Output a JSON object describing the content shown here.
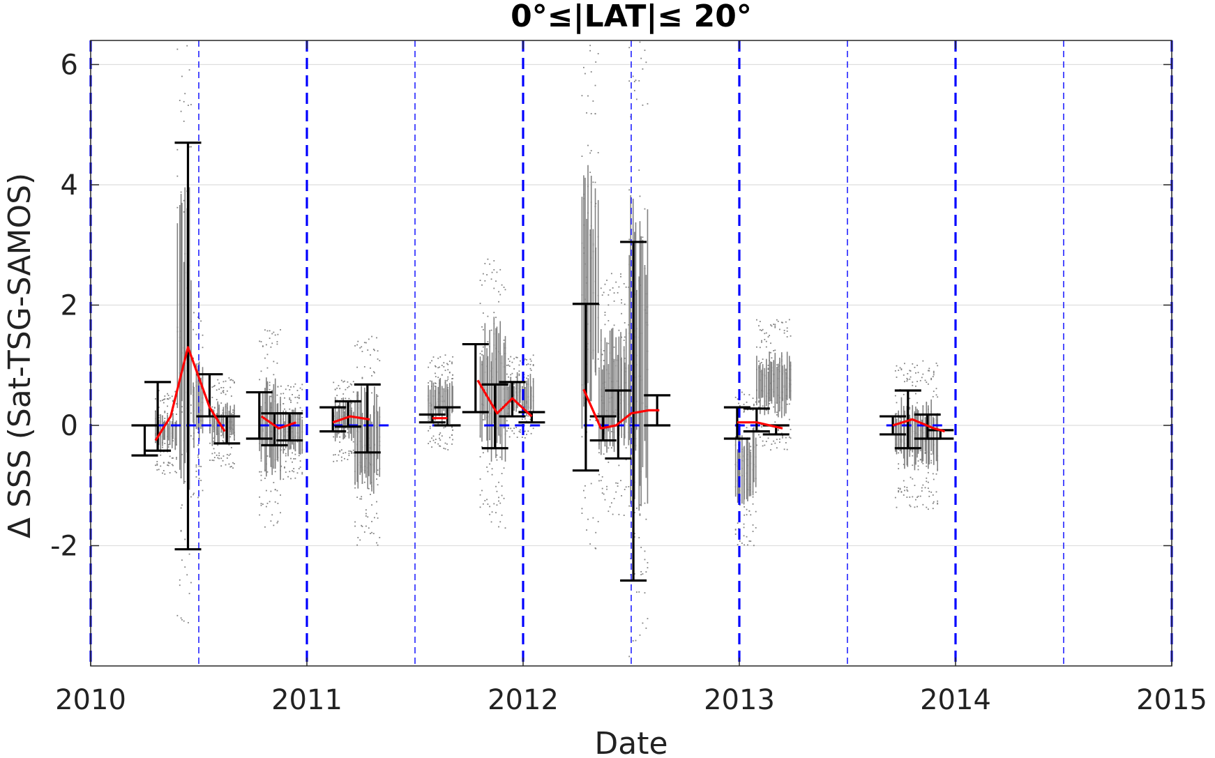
{
  "chart_data": {
    "type": "scatter",
    "title": "0°≤|LAT|≤ 20°",
    "xlabel": "Date",
    "ylabel": "Δ SSS (Sat-TSG-SAMOS)",
    "xlim": [
      2010,
      2015
    ],
    "ylim": [
      -4,
      6.4
    ],
    "x_ticks": [
      2010,
      2011,
      2012,
      2013,
      2014,
      2015
    ],
    "x_tick_labels": [
      "2010",
      "2011",
      "2012",
      "2013",
      "2014",
      "2015"
    ],
    "y_ticks": [
      -2,
      0,
      2,
      4,
      6
    ],
    "y_tick_labels": [
      "-2",
      "0",
      "2",
      "4",
      "6"
    ],
    "grid": "horizontal",
    "colors": {
      "scatter": "#808080",
      "mean_line": "#ff0000",
      "error_bars": "#000000",
      "reference": "#0000ff"
    },
    "year_lines": [
      2010,
      2011,
      2012,
      2013,
      2014,
      2015
    ],
    "half_year_lines": [
      2010.5,
      2011.5,
      2012.5,
      2013.5,
      2014.5
    ],
    "zero_reference_segments": [
      [
        2010.3,
        2010.62
      ],
      [
        2010.78,
        2010.97
      ],
      [
        2011.12,
        2011.38
      ],
      [
        2011.58,
        2011.68
      ],
      [
        2011.82,
        2012.08
      ],
      [
        2012.28,
        2012.62
      ],
      [
        2012.98,
        2013.22
      ],
      [
        2013.68,
        2013.95
      ]
    ],
    "scatter_clusters": [
      {
        "x": [
          2010.3,
          2010.4
        ],
        "ymin": -0.8,
        "ymax": 0.6
      },
      {
        "x": [
          2010.4,
          2010.47
        ],
        "ymin": -3.5,
        "ymax": 6.4
      },
      {
        "x": [
          2010.47,
          2010.52
        ],
        "ymin": -1.2,
        "ymax": 1.9
      },
      {
        "x": [
          2010.55,
          2010.67
        ],
        "ymin": -0.7,
        "ymax": 0.8
      },
      {
        "x": [
          2010.78,
          2010.88
        ],
        "ymin": -1.7,
        "ymax": 1.6
      },
      {
        "x": [
          2010.88,
          2010.98
        ],
        "ymin": -0.9,
        "ymax": 0.7
      },
      {
        "x": [
          2011.12,
          2011.22
        ],
        "ymin": -0.6,
        "ymax": 0.8
      },
      {
        "x": [
          2011.22,
          2011.34
        ],
        "ymin": -2.0,
        "ymax": 1.5
      },
      {
        "x": [
          2011.56,
          2011.68
        ],
        "ymin": -0.4,
        "ymax": 1.2
      },
      {
        "x": [
          2011.8,
          2011.92
        ],
        "ymin": -1.7,
        "ymax": 2.9
      },
      {
        "x": [
          2011.92,
          2012.05
        ],
        "ymin": -0.2,
        "ymax": 1.2
      },
      {
        "x": [
          2012.27,
          2012.35
        ],
        "ymin": -2.1,
        "ymax": 6.4
      },
      {
        "x": [
          2012.35,
          2012.49
        ],
        "ymin": -1.5,
        "ymax": 2.6
      },
      {
        "x": [
          2012.49,
          2012.58
        ],
        "ymin": -4.0,
        "ymax": 6.4
      },
      {
        "x": [
          2012.98,
          2013.08
        ],
        "ymin": -2.0,
        "ymax": 0.6
      },
      {
        "x": [
          2013.08,
          2013.24
        ],
        "ymin": -0.4,
        "ymax": 1.8
      },
      {
        "x": [
          2013.72,
          2013.92
        ],
        "ymin": -1.4,
        "ymax": 1.1
      }
    ],
    "monthly_means": {
      "x": [
        2010.3,
        2010.37,
        2010.45,
        2010.55,
        2010.62,
        2010.79,
        2010.87,
        2010.95,
        2011.12,
        2011.2,
        2011.29,
        2011.58,
        2011.65,
        2011.79,
        2011.88,
        2011.95,
        2012.04,
        2012.28,
        2012.36,
        2012.43,
        2012.5,
        2012.58,
        2012.63,
        2012.99,
        2013.08,
        2013.2,
        2013.71,
        2013.8,
        2013.9,
        2013.95
      ],
      "y": [
        -0.25,
        0.15,
        1.3,
        0.3,
        -0.1,
        0.15,
        -0.05,
        0.05,
        0.05,
        0.15,
        0.1,
        0.12,
        0.12,
        0.75,
        0.2,
        0.45,
        0.15,
        0.6,
        -0.05,
        0.0,
        0.2,
        0.25,
        0.25,
        0.05,
        0.05,
        -0.05,
        0.0,
        0.1,
        -0.05,
        -0.1
      ]
    },
    "error_bars": [
      {
        "x": 2010.25,
        "low": -0.5,
        "high": 0.0
      },
      {
        "x": 2010.31,
        "low": -0.42,
        "high": 0.72
      },
      {
        "x": 2010.45,
        "low": -2.06,
        "high": 4.7
      },
      {
        "x": 2010.55,
        "low": 0.15,
        "high": 0.85
      },
      {
        "x": 2010.63,
        "low": -0.3,
        "high": 0.15
      },
      {
        "x": 2010.78,
        "low": -0.22,
        "high": 0.55
      },
      {
        "x": 2010.85,
        "low": -0.33,
        "high": 0.2
      },
      {
        "x": 2010.92,
        "low": -0.25,
        "high": 0.2
      },
      {
        "x": 2011.12,
        "low": -0.1,
        "high": 0.3
      },
      {
        "x": 2011.19,
        "low": -0.02,
        "high": 0.4
      },
      {
        "x": 2011.28,
        "low": -0.45,
        "high": 0.68
      },
      {
        "x": 2011.58,
        "low": 0.05,
        "high": 0.18
      },
      {
        "x": 2011.65,
        "low": 0.0,
        "high": 0.3
      },
      {
        "x": 2011.78,
        "low": 0.22,
        "high": 1.35
      },
      {
        "x": 2011.87,
        "low": -0.38,
        "high": 0.68
      },
      {
        "x": 2011.95,
        "low": 0.15,
        "high": 0.72
      },
      {
        "x": 2012.04,
        "low": 0.05,
        "high": 0.22
      },
      {
        "x": 2012.29,
        "low": -0.75,
        "high": 2.02
      },
      {
        "x": 2012.37,
        "low": -0.25,
        "high": 0.15
      },
      {
        "x": 2012.44,
        "low": -0.55,
        "high": 0.58
      },
      {
        "x": 2012.51,
        "low": -2.58,
        "high": 3.05
      },
      {
        "x": 2012.62,
        "low": 0.0,
        "high": 0.5
      },
      {
        "x": 2012.99,
        "low": -0.22,
        "high": 0.3
      },
      {
        "x": 2013.08,
        "low": -0.1,
        "high": 0.28
      },
      {
        "x": 2013.17,
        "low": -0.15,
        "high": 0.0
      },
      {
        "x": 2013.71,
        "low": -0.15,
        "high": 0.15
      },
      {
        "x": 2013.78,
        "low": -0.38,
        "high": 0.58
      },
      {
        "x": 2013.87,
        "low": -0.22,
        "high": 0.18
      },
      {
        "x": 2013.93,
        "low": -0.22,
        "high": -0.08
      }
    ]
  }
}
